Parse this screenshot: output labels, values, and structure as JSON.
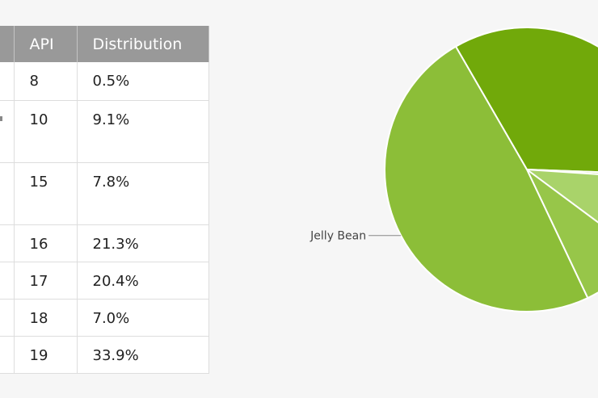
{
  "table": {
    "headers": [
      "",
      "API",
      "Distribution"
    ],
    "rows": [
      {
        "api": "8",
        "distribution": "0.5%"
      },
      {
        "api": "10",
        "distribution": "9.1%"
      },
      {
        "api": "15",
        "distribution": "7.8%"
      },
      {
        "api": "16",
        "distribution": "21.3%"
      },
      {
        "api": "17",
        "distribution": "20.4%"
      },
      {
        "api": "18",
        "distribution": "7.0%"
      },
      {
        "api": "19",
        "distribution": "33.9%"
      }
    ]
  },
  "chart_data": {
    "type": "pie",
    "slices": [
      {
        "label": "",
        "value": 33.9,
        "color": "#71a90a"
      },
      {
        "label": "",
        "value": 0.5,
        "color": "#c8e49a"
      },
      {
        "label": "",
        "value": 9.1,
        "color": "#a9d36a"
      },
      {
        "label": "",
        "value": 7.8,
        "color": "#97c649"
      },
      {
        "label": "Jelly Bean",
        "value": 48.7,
        "color": "#8cbe38"
      }
    ],
    "colors": {
      "slice_border": "#ffffff",
      "leader_line": "#888888",
      "label_text": "#444444"
    }
  }
}
